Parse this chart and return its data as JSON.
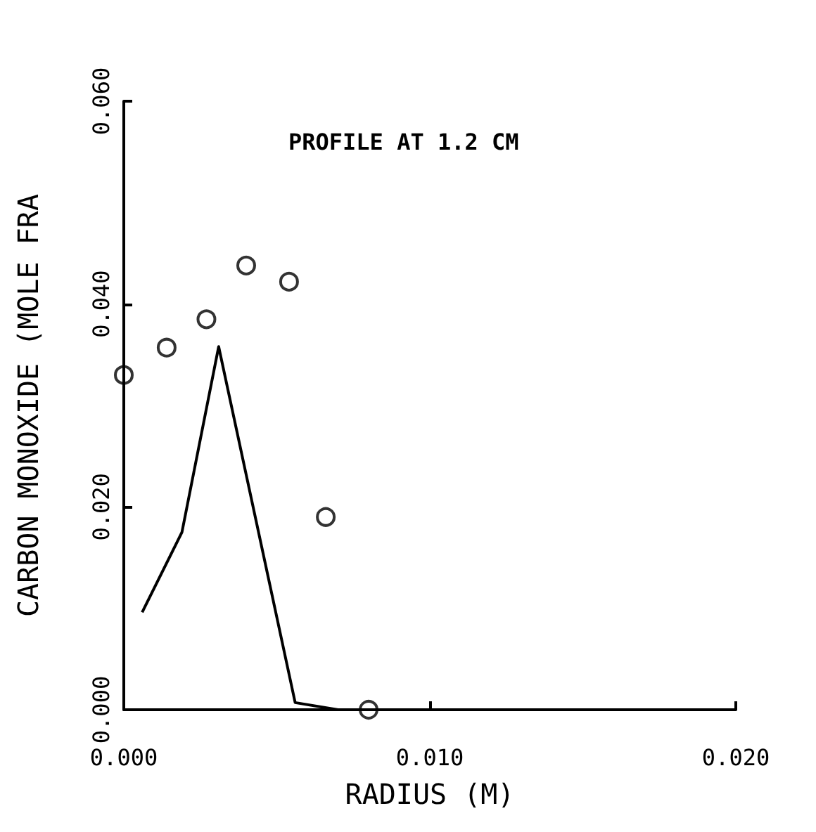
{
  "chart_data": {
    "type": "scatter",
    "title": "PROFILE AT 1.2 CM",
    "xlabel": "RADIUS (M)",
    "ylabel": "CARBON MONOXIDE (MOLE FRA",
    "xlim": [
      0,
      0.02
    ],
    "xticks": [
      {
        "value": 0,
        "label": "0.000"
      },
      {
        "value": 0.01,
        "label": "0.010"
      },
      {
        "value": 0.02,
        "label": "0.020"
      }
    ],
    "ylim": [
      0,
      0.06
    ],
    "yticks": [
      {
        "value": 0,
        "label": "0.000"
      },
      {
        "value": 0.02,
        "label": "0.020"
      },
      {
        "value": 0.04,
        "label": "0.040"
      },
      {
        "value": 0.06,
        "label": "0.060"
      }
    ],
    "grid": false,
    "series": [
      {
        "color": "#000000",
        "marker": "circle",
        "x": [
          0,
          0.0014,
          0.0027,
          0.004,
          0.0054,
          0.0066,
          0.008
        ],
        "values": [
          0.033,
          0.0357,
          0.0385,
          0.0438,
          0.0422,
          0.019,
          0.0
        ]
      },
      {
        "type": "line",
        "color": "#000000",
        "marker": "none",
        "line_style": "solid",
        "x": [
          0.0006,
          0.0019,
          0.0031,
          0.0056,
          0.007,
          0.02
        ],
        "values": [
          0.0096,
          0.0175,
          0.0358,
          0.0007,
          0.0,
          0.0
        ]
      }
    ]
  }
}
